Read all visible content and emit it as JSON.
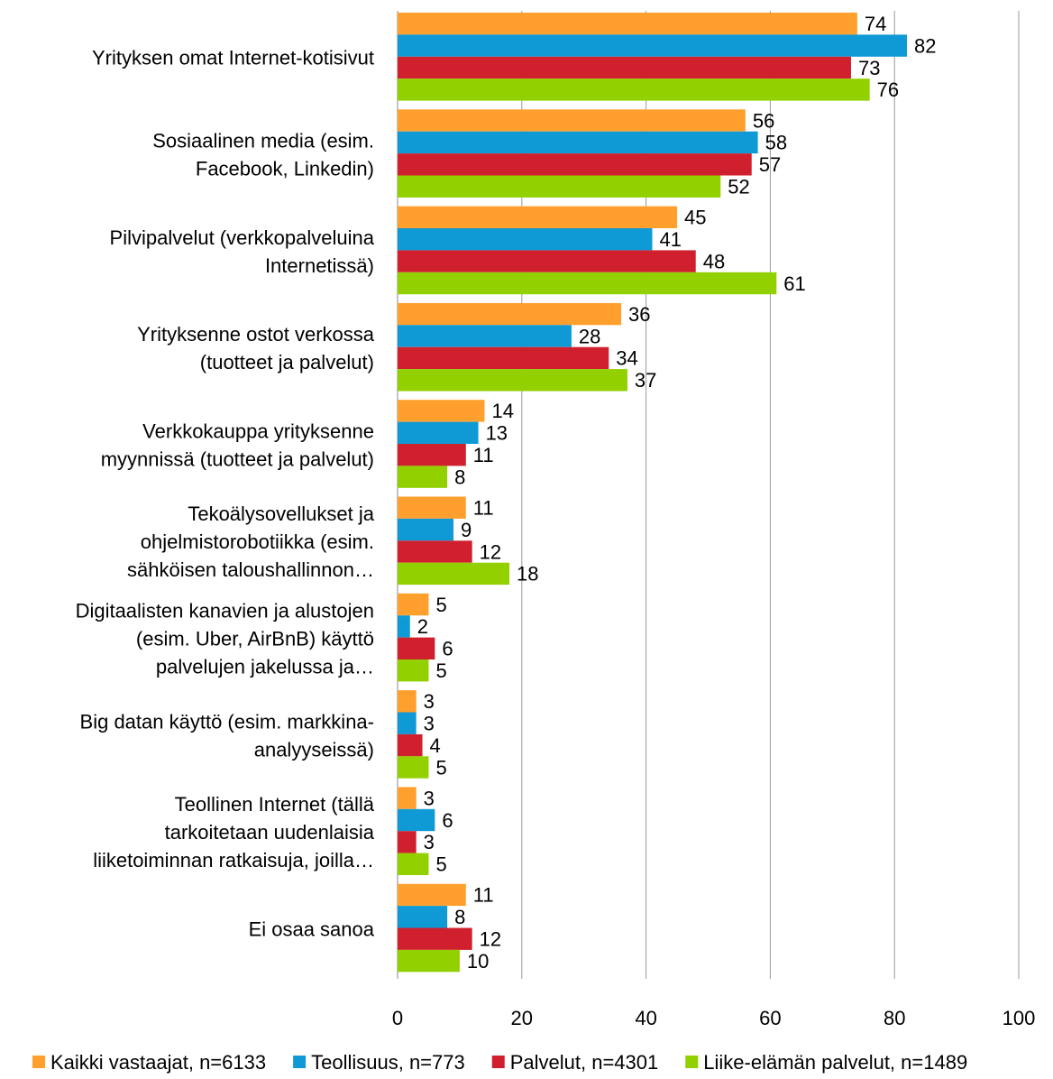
{
  "chart_data": {
    "type": "hbar",
    "categories": [
      [
        "Yrityksen omat Internet-kotisivut"
      ],
      [
        "Sosiaalinen media (esim.",
        "Facebook, Linkedin)"
      ],
      [
        "Pilvipalvelut  (verkkopalveluina",
        "Internetissä)"
      ],
      [
        "Yrityksenne ostot verkossa",
        "(tuotteet ja palvelut)"
      ],
      [
        "Verkkokauppa yrityksenne",
        "myynnissä (tuotteet ja palvelut)"
      ],
      [
        "Tekoälysovellukset ja",
        "ohjelmistorobotiikka (esim.",
        "sähköisen taloushallinnon…"
      ],
      [
        "Digitaalisten kanavien ja alustojen",
        "(esim. Uber, AirBnB) käyttö",
        "palvelujen jakelussa ja…"
      ],
      [
        "Big datan käyttö (esim. markkina-",
        "analyyseissä)"
      ],
      [
        "Teollinen Internet (tällä",
        "tarkoitetaan uudenlaisia",
        "liiketoiminnan ratkaisuja, joilla…"
      ],
      [
        "Ei osaa sanoa"
      ]
    ],
    "series": [
      {
        "name": "Kaikki vastaajat, n=6133",
        "color": "#ff9f2e",
        "values": [
          74,
          56,
          45,
          36,
          14,
          11,
          5,
          3,
          3,
          11
        ]
      },
      {
        "name": "Teollisuus, n=773",
        "color": "#0f9ad6",
        "values": [
          82,
          58,
          41,
          28,
          13,
          9,
          2,
          3,
          6,
          8
        ]
      },
      {
        "name": "Palvelut, n=4301",
        "color": "#d0202e",
        "values": [
          73,
          57,
          48,
          34,
          11,
          12,
          6,
          4,
          3,
          12
        ]
      },
      {
        "name": "Liike-elämän palvelut, n=1489",
        "color": "#92d000",
        "values": [
          76,
          52,
          61,
          37,
          8,
          18,
          5,
          5,
          5,
          10
        ]
      }
    ],
    "xlim": [
      0,
      100
    ],
    "xticks": [
      0,
      20,
      40,
      60,
      80,
      100
    ],
    "grid": true,
    "legend": "bottom"
  }
}
